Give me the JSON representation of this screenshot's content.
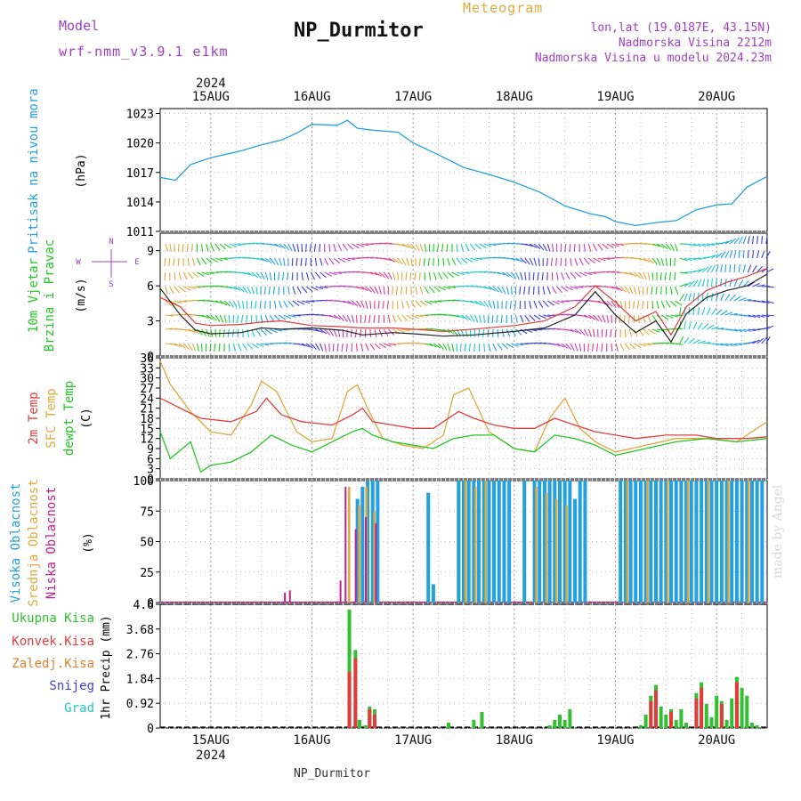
{
  "header": {
    "model_label": "Model",
    "model_name": "wrf-nmm_v3.9.1 e1km",
    "title": "NP_Durmitor",
    "subtitle": "Meteogram",
    "lonlat": "lon,lat (19.0187E, 43.15N)",
    "elevation": "Nadmorska Visina 2212m",
    "model_elevation": "Nadmorska Visina u modelu 2024.23m",
    "footer": "NP_Durmitor",
    "watermark": "made by Angel"
  },
  "time_axis": {
    "year": "2024",
    "start_day": 14.5,
    "end_day": 20.5,
    "tick_labels": [
      "15AUG",
      "16AUG",
      "17AUG",
      "18AUG",
      "19AUG",
      "20AUG"
    ],
    "tick_days": [
      15,
      16,
      17,
      18,
      19,
      20
    ]
  },
  "colors": {
    "pressure": "#22a0e0",
    "wind_label": "#22c822",
    "wind_line": "#222222",
    "gust_line": "#e03c3c",
    "temp2m": "#e0403c",
    "sfc_temp": "#e0a83c",
    "dewpt": "#22c822",
    "cloud_high": "#22a0e0",
    "cloud_mid": "#e0a83c",
    "cloud_low": "#c0208c",
    "rain_total": "#30c030",
    "rain_conv": "#e03c3c",
    "rain_strat": "#e08030",
    "snow": "#3c3ce0",
    "hail": "#20c8c8",
    "compass": "#a040c0",
    "header_model": "#a040c0",
    "header_meteo": "#e0a83c"
  },
  "chart_data": [
    {
      "id": "pressure",
      "type": "line",
      "ylabel": "Pritisak na nivou mora",
      "unit": "(hPa)",
      "ylim": [
        1011,
        1023.5
      ],
      "yticks": [
        1011,
        1014,
        1017,
        1020,
        1023
      ],
      "grid": true,
      "series": [
        {
          "name": "Pritisak na nivou mora",
          "x": [
            14.5,
            14.65,
            14.8,
            15.0,
            15.3,
            15.5,
            15.7,
            15.85,
            16.0,
            16.25,
            16.35,
            16.45,
            16.6,
            16.85,
            17.0,
            17.25,
            17.5,
            17.75,
            18.0,
            18.25,
            18.5,
            18.75,
            18.9,
            19.0,
            19.2,
            19.4,
            19.6,
            19.8,
            20.0,
            20.15,
            20.3,
            20.5
          ],
          "y": [
            1016.5,
            1016.2,
            1017.8,
            1018.5,
            1019.2,
            1019.8,
            1020.3,
            1021.0,
            1021.9,
            1021.8,
            1022.3,
            1021.5,
            1021.3,
            1021.1,
            1020.0,
            1018.8,
            1017.5,
            1016.8,
            1016.0,
            1015.0,
            1013.6,
            1012.8,
            1012.5,
            1012.0,
            1011.6,
            1011.9,
            1012.1,
            1013.2,
            1013.7,
            1013.8,
            1015.5,
            1016.6
          ]
        }
      ]
    },
    {
      "id": "wind",
      "type": "line",
      "ylabel": "10m Vjetar Brzina i Pravac",
      "unit": "(m/s)",
      "ylim": [
        0,
        10.5
      ],
      "yticks": [
        0,
        3,
        6,
        9
      ],
      "grid": true,
      "compass": {
        "n": "N",
        "s": "S",
        "w": "W",
        "e": "E"
      },
      "series": [
        {
          "name": "brzina",
          "x": [
            14.5,
            14.7,
            14.85,
            15.0,
            15.3,
            15.5,
            15.7,
            16.0,
            16.3,
            16.5,
            16.8,
            17.0,
            17.3,
            17.6,
            18.0,
            18.3,
            18.6,
            18.8,
            19.0,
            19.2,
            19.4,
            19.55,
            19.7,
            19.9,
            20.1,
            20.3,
            20.5
          ],
          "y": [
            5.8,
            3.5,
            2.2,
            1.9,
            2.0,
            2.4,
            2.3,
            2.4,
            2.2,
            1.8,
            2.0,
            1.9,
            1.7,
            1.8,
            2.1,
            2.4,
            3.5,
            5.5,
            3.5,
            2.0,
            3.0,
            1.2,
            3.6,
            5.0,
            5.6,
            6.0,
            7.0
          ]
        },
        {
          "name": "udari",
          "x": [
            14.5,
            14.7,
            14.85,
            15.0,
            15.3,
            15.5,
            15.7,
            16.0,
            16.3,
            16.5,
            16.8,
            17.0,
            17.3,
            17.6,
            18.0,
            18.3,
            18.6,
            18.8,
            19.0,
            19.2,
            19.4,
            19.55,
            19.7,
            19.9,
            20.1,
            20.3,
            20.5
          ],
          "y": [
            5.0,
            4.2,
            2.8,
            2.6,
            2.7,
            2.9,
            3.0,
            2.6,
            2.5,
            2.4,
            2.4,
            2.3,
            2.1,
            2.3,
            2.6,
            3.0,
            4.2,
            6.0,
            4.6,
            3.0,
            3.8,
            1.8,
            4.2,
            5.6,
            6.3,
            6.8,
            7.5
          ]
        }
      ]
    },
    {
      "id": "temperature",
      "type": "line",
      "ylabel_parts": [
        "2m Temp",
        "SFC Temp",
        "dewpt Temp"
      ],
      "unit": "(C)",
      "ylim": [
        0,
        36
      ],
      "yticks": [
        0,
        3,
        6,
        9,
        12,
        15,
        18,
        21,
        24,
        27,
        30,
        33,
        36
      ],
      "grid": true,
      "series": [
        {
          "name": "2m Temp",
          "x": [
            14.5,
            14.7,
            14.9,
            15.2,
            15.45,
            15.55,
            15.7,
            15.9,
            16.2,
            16.4,
            16.5,
            16.6,
            16.8,
            17.0,
            17.2,
            17.45,
            17.6,
            17.8,
            18.0,
            18.2,
            18.4,
            18.6,
            18.8,
            19.0,
            19.2,
            19.5,
            19.8,
            20.0,
            20.3,
            20.5
          ],
          "y": [
            24,
            21,
            18,
            17,
            20,
            24,
            19,
            17,
            16,
            19,
            21,
            17,
            16,
            15,
            15,
            20,
            18,
            16,
            15,
            15,
            18,
            16,
            14,
            13,
            12,
            13,
            13,
            12,
            12,
            12.5
          ]
        },
        {
          "name": "SFC Temp",
          "x": [
            14.5,
            14.6,
            14.8,
            15.0,
            15.2,
            15.4,
            15.5,
            15.65,
            15.85,
            16.0,
            16.2,
            16.35,
            16.45,
            16.55,
            16.7,
            16.9,
            17.1,
            17.3,
            17.4,
            17.55,
            17.75,
            18.0,
            18.2,
            18.35,
            18.5,
            18.65,
            18.8,
            19.0,
            19.3,
            19.6,
            19.9,
            20.2,
            20.4,
            20.5
          ],
          "y": [
            35,
            28,
            20,
            14,
            13,
            22,
            29,
            26,
            14,
            11,
            12,
            26,
            28,
            21,
            12,
            10,
            9,
            13,
            25,
            27,
            14,
            9,
            8,
            18,
            24,
            15,
            11,
            8,
            10,
            12,
            12,
            11,
            15,
            17
          ]
        },
        {
          "name": "dewpt Temp",
          "x": [
            14.5,
            14.6,
            14.8,
            14.9,
            15.0,
            15.2,
            15.4,
            15.6,
            15.8,
            16.0,
            16.2,
            16.4,
            16.5,
            16.6,
            16.8,
            17.0,
            17.2,
            17.4,
            17.6,
            17.8,
            18.0,
            18.2,
            18.4,
            18.6,
            18.8,
            19.0,
            19.3,
            19.6,
            19.9,
            20.2,
            20.5
          ],
          "y": [
            14,
            6,
            11,
            2,
            4,
            5,
            8,
            13,
            10,
            8,
            11,
            14,
            15,
            13,
            11,
            10,
            9,
            12,
            13,
            13,
            9,
            8,
            13,
            12,
            10,
            7,
            9,
            11,
            12,
            11,
            12
          ]
        }
      ]
    },
    {
      "id": "clouds",
      "type": "bar",
      "ylabel_parts": [
        "Visoka Oblacnost",
        "Srednja Oblacnost",
        "Niska Oblacnost"
      ],
      "unit": "(%)",
      "ylim": [
        0,
        100
      ],
      "yticks": [
        0,
        25,
        50,
        75,
        100
      ],
      "grid": true,
      "series": [
        {
          "name": "Visoka Oblacnost",
          "x": [
            16.45,
            16.5,
            16.55,
            16.6,
            16.65,
            17.15,
            17.2,
            17.45,
            17.5,
            17.55,
            17.6,
            17.65,
            17.7,
            17.75,
            17.8,
            17.85,
            17.9,
            17.95,
            18.1,
            18.2,
            18.25,
            18.3,
            18.35,
            18.4,
            18.45,
            18.5,
            18.55,
            18.6,
            18.65,
            18.7,
            19.05,
            19.1,
            19.15,
            19.2,
            19.25,
            19.3,
            19.35,
            19.4,
            19.45,
            19.5,
            19.55,
            19.6,
            19.65,
            19.7,
            19.75,
            19.8,
            19.85,
            19.9,
            19.95,
            20.0,
            20.05,
            20.1,
            20.15,
            20.2,
            20.25,
            20.3,
            20.35,
            20.4,
            20.45
          ],
          "y": [
            85,
            95,
            100,
            100,
            100,
            90,
            15,
            100,
            100,
            100,
            100,
            100,
            100,
            100,
            100,
            100,
            100,
            100,
            100,
            100,
            100,
            100,
            100,
            100,
            100,
            100,
            100,
            85,
            100,
            100,
            100,
            100,
            100,
            100,
            100,
            100,
            100,
            100,
            100,
            100,
            100,
            100,
            100,
            100,
            100,
            100,
            100,
            100,
            100,
            100,
            100,
            100,
            100,
            100,
            100,
            100,
            100,
            100,
            100
          ]
        },
        {
          "name": "Srednja Oblacnost",
          "x": [
            16.35,
            16.45,
            16.52,
            16.6,
            17.5,
            17.6,
            17.7,
            18.2,
            18.3,
            18.4,
            18.5,
            19.1,
            19.3,
            19.5,
            19.7,
            19.9,
            20.1,
            20.3
          ],
          "y": [
            95,
            80,
            95,
            75,
            100,
            95,
            100,
            95,
            90,
            85,
            80,
            100,
            100,
            100,
            100,
            100,
            100,
            100
          ]
        },
        {
          "name": "Niska Oblacnost",
          "x": [
            15.75,
            15.8,
            16.3,
            16.35,
            16.45,
            16.55,
            16.65
          ],
          "y": [
            8,
            10,
            18,
            95,
            60,
            70,
            65
          ]
        }
      ]
    },
    {
      "id": "precip",
      "type": "bar",
      "ylabel_parts": [
        "1hr Precip (mm)"
      ],
      "legend": [
        "Ukupna Kisa",
        "Konvek.Kisa",
        "Zaledj.Kisa",
        "Snijeg",
        "Grad"
      ],
      "ylim": [
        0,
        4.6
      ],
      "yticks": [
        0,
        0.92,
        1.84,
        2.76,
        3.68,
        4.6
      ],
      "grid": true,
      "series": [
        {
          "name": "Ukupna Kisa",
          "x": [
            16.37,
            16.43,
            16.47,
            16.53,
            16.57,
            16.62,
            17.35,
            17.6,
            17.68,
            18.35,
            18.4,
            18.45,
            18.5,
            18.55,
            19.25,
            19.3,
            19.35,
            19.4,
            19.45,
            19.5,
            19.55,
            19.6,
            19.65,
            19.7,
            19.8,
            19.85,
            19.9,
            19.95,
            20.0,
            20.05,
            20.1,
            20.15,
            20.2,
            20.25,
            20.3,
            20.35,
            20.4
          ],
          "y": [
            4.4,
            2.9,
            0.3,
            0.1,
            0.8,
            0.7,
            0.2,
            0.3,
            0.6,
            0.1,
            0.3,
            0.5,
            0.3,
            0.7,
            0.1,
            0.5,
            1.2,
            1.6,
            0.8,
            0.5,
            0.7,
            0.3,
            0.7,
            0.2,
            1.3,
            1.7,
            0.9,
            0.4,
            1.2,
            1.0,
            0.3,
            1.1,
            1.9,
            1.5,
            1.2,
            0.2,
            0.1
          ]
        },
        {
          "name": "Konvek.Kisa",
          "x": [
            16.37,
            16.43,
            16.57,
            16.62,
            19.35,
            19.4,
            19.55,
            19.8,
            19.85,
            20.05,
            20.2
          ],
          "y": [
            2.1,
            2.6,
            0.7,
            0.5,
            1.0,
            1.4,
            0.6,
            1.1,
            1.5,
            0.9,
            1.7
          ]
        }
      ]
    }
  ]
}
